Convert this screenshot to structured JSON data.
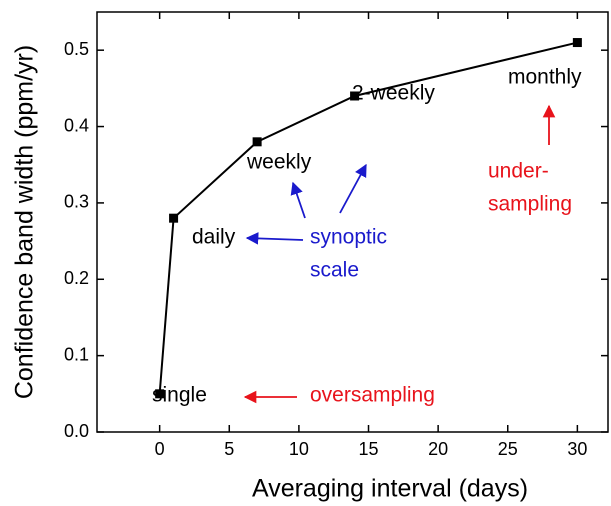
{
  "chart_data": {
    "type": "line",
    "x_label": "Averaging interval (days)",
    "y_label": "Confidence band width (ppm/yr)",
    "x": [
      0,
      1,
      7,
      14,
      30
    ],
    "series": [
      {
        "name": null,
        "color": "#000000",
        "values": [
          0.05,
          0.28,
          0.38,
          0.44,
          0.51
        ]
      }
    ],
    "xlim": [
      -4.5,
      32.2
    ],
    "ylim": [
      0,
      0.55
    ],
    "xticks": [
      0,
      5,
      10,
      15,
      20,
      25,
      30
    ],
    "yticks": [
      {
        "value": 0,
        "label": "0.0"
      },
      0.1,
      0.2,
      0.3,
      0.4,
      0.5
    ],
    "annotations": [
      {
        "lines": [
          "single"
        ],
        "color": "#000000"
      },
      {
        "lines": [
          "daily"
        ],
        "color": "#000000"
      },
      {
        "lines": [
          "weekly"
        ],
        "color": "#000000"
      },
      {
        "lines": [
          "2-weekly"
        ],
        "color": "#000000"
      },
      {
        "lines": [
          "monthly"
        ],
        "color": "#000000"
      },
      {
        "lines": [
          "synoptic",
          "scale"
        ],
        "color": "#1a1acc"
      },
      {
        "lines": [
          "oversampling"
        ],
        "color": "#e8131b"
      },
      {
        "lines": [
          "under-",
          "sampling"
        ],
        "color": "#e8131b"
      }
    ]
  }
}
